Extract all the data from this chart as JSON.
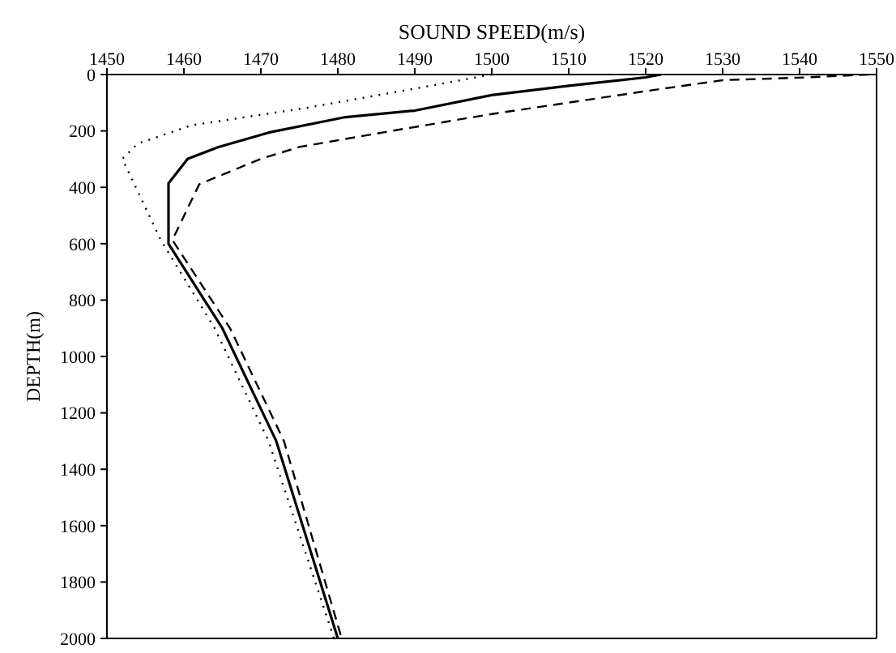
{
  "chart_data": {
    "type": "line",
    "xlabel": "SOUND SPEED(m/s)",
    "ylabel": "DEPTH(m)",
    "xlim": [
      1450,
      1550
    ],
    "xticks": [
      1450,
      1460,
      1470,
      1480,
      1490,
      1500,
      1510,
      1520,
      1530,
      1540,
      1550
    ],
    "ylim": [
      2000,
      0
    ],
    "yticks": [
      0,
      200,
      400,
      600,
      800,
      1000,
      1200,
      1400,
      1600,
      1800,
      2000
    ],
    "marker": "none",
    "series": [
      {
        "color": "#000000",
        "line_style": "solid",
        "x": [
          1522,
          1520,
          1510,
          1500,
          1490,
          1481,
          1471,
          1464.5,
          1460.5,
          1458,
          1458,
          1465,
          1472,
          1480
        ],
        "values": [
          0,
          10,
          40,
          73,
          128,
          151,
          206,
          257,
          299,
          386,
          600,
          900,
          1300,
          2000
        ]
      },
      {
        "color": "#000000",
        "line_style": "dashed",
        "x": [
          1549,
          1540,
          1530,
          1520,
          1500,
          1487,
          1475,
          1470,
          1462,
          1458.5,
          1466,
          1473,
          1480.5
        ],
        "values": [
          0,
          11,
          20,
          59,
          140,
          200,
          257,
          299,
          389,
          587,
          900,
          1300,
          2000
        ]
      },
      {
        "color": "#000000",
        "line_style": "dotted",
        "x": [
          1500,
          1490,
          1476,
          1461,
          1454,
          1452,
          1457,
          1464,
          1471,
          1479.5
        ],
        "values": [
          0,
          50,
          118,
          180,
          245,
          299,
          587,
          900,
          1300,
          2000
        ]
      }
    ]
  }
}
